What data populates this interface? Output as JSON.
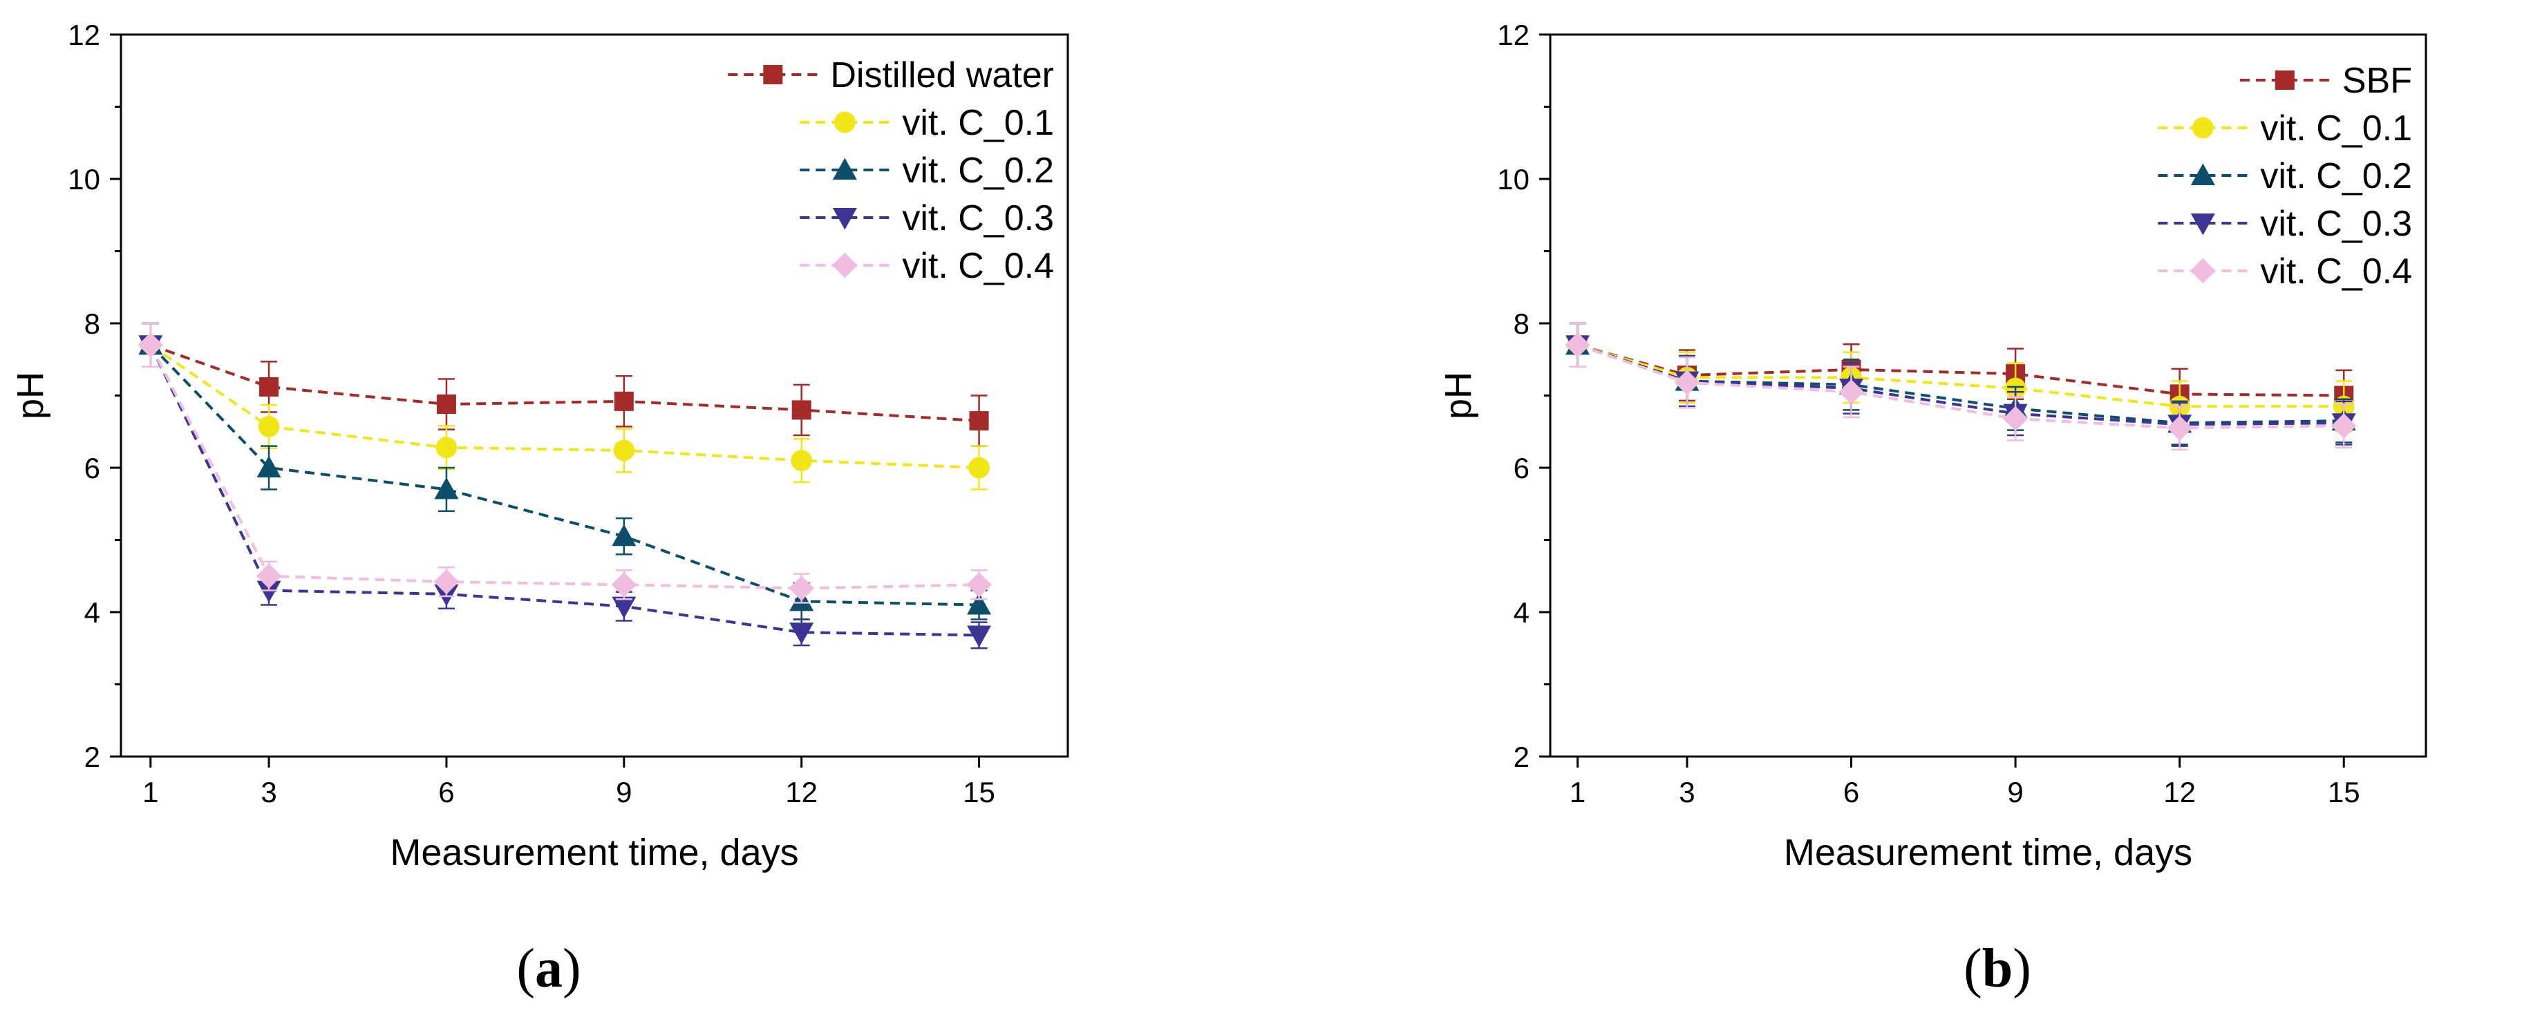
{
  "chart_data": [
    {
      "panel": "a",
      "type": "line",
      "xlabel": "Measurement time, days",
      "ylabel": "pH",
      "x": [
        1,
        3,
        6,
        9,
        12,
        15
      ],
      "xticks": [
        "1",
        "3",
        "6",
        "9",
        "12",
        "15"
      ],
      "ylim": [
        2,
        12
      ],
      "yticks": [
        "2",
        "4",
        "6",
        "8",
        "10",
        "12"
      ],
      "legend_position": "top-right",
      "series": [
        {
          "name": "Distilled water",
          "marker": "square",
          "color": "#a52a2a",
          "values": [
            7.7,
            7.12,
            6.88,
            6.92,
            6.8,
            6.65
          ],
          "errors": [
            0.3,
            0.35,
            0.35,
            0.35,
            0.35,
            0.35
          ]
        },
        {
          "name": "vit. C_0.1",
          "marker": "circle",
          "color": "#f2e618",
          "values": [
            7.7,
            6.57,
            6.28,
            6.24,
            6.1,
            6.0
          ],
          "errors": [
            0.3,
            0.3,
            0.3,
            0.3,
            0.3,
            0.3
          ]
        },
        {
          "name": "vit. C_0.2",
          "marker": "triangle-up",
          "color": "#0d4f6b",
          "values": [
            7.7,
            6.0,
            5.7,
            5.05,
            4.15,
            4.1
          ],
          "errors": [
            0.3,
            0.3,
            0.3,
            0.25,
            0.25,
            0.2
          ]
        },
        {
          "name": "vit. C_0.3",
          "marker": "triangle-down",
          "color": "#3d3593",
          "values": [
            7.7,
            4.3,
            4.25,
            4.08,
            3.72,
            3.68
          ],
          "errors": [
            0.3,
            0.2,
            0.2,
            0.2,
            0.18,
            0.18
          ]
        },
        {
          "name": "vit. C_0.4",
          "marker": "diamond",
          "color": "#f0bde0",
          "values": [
            7.7,
            4.5,
            4.42,
            4.38,
            4.33,
            4.38
          ],
          "errors": [
            0.3,
            0.2,
            0.2,
            0.2,
            0.2,
            0.2
          ]
        }
      ]
    },
    {
      "panel": "b",
      "type": "line",
      "xlabel": "Measurement time, days",
      "ylabel": "pH",
      "x": [
        1,
        3,
        6,
        9,
        12,
        15
      ],
      "xticks": [
        "1",
        "3",
        "6",
        "9",
        "12",
        "15"
      ],
      "ylim": [
        2,
        12
      ],
      "yticks": [
        "2",
        "4",
        "6",
        "8",
        "10",
        "12"
      ],
      "legend_position": "top-right",
      "series": [
        {
          "name": "SBF",
          "marker": "square",
          "color": "#a52a2a",
          "values": [
            7.7,
            7.28,
            7.36,
            7.3,
            7.02,
            7.0
          ],
          "errors": [
            0.3,
            0.35,
            0.35,
            0.35,
            0.35,
            0.35
          ]
        },
        {
          "name": "vit. C_0.1",
          "marker": "circle",
          "color": "#f2e618",
          "values": [
            7.7,
            7.25,
            7.25,
            7.1,
            6.85,
            6.85
          ],
          "errors": [
            0.3,
            0.35,
            0.35,
            0.35,
            0.35,
            0.35
          ]
        },
        {
          "name": "vit. C_0.2",
          "marker": "triangle-up",
          "color": "#0d4f6b",
          "values": [
            7.7,
            7.2,
            7.15,
            6.82,
            6.62,
            6.65
          ],
          "errors": [
            0.3,
            0.35,
            0.35,
            0.3,
            0.3,
            0.3
          ]
        },
        {
          "name": "vit. C_0.3",
          "marker": "triangle-down",
          "color": "#3d3593",
          "values": [
            7.7,
            7.2,
            7.1,
            6.75,
            6.6,
            6.62
          ],
          "errors": [
            0.3,
            0.35,
            0.35,
            0.3,
            0.3,
            0.3
          ]
        },
        {
          "name": "vit. C_0.4",
          "marker": "diamond",
          "color": "#f0bde0",
          "values": [
            7.7,
            7.18,
            7.05,
            6.68,
            6.55,
            6.58
          ],
          "errors": [
            0.3,
            0.35,
            0.35,
            0.3,
            0.3,
            0.3
          ]
        }
      ]
    }
  ],
  "panel_labels": [
    {
      "open": "(",
      "letter": "a",
      "close": ")"
    },
    {
      "open": "(",
      "letter": "b",
      "close": ")"
    }
  ]
}
